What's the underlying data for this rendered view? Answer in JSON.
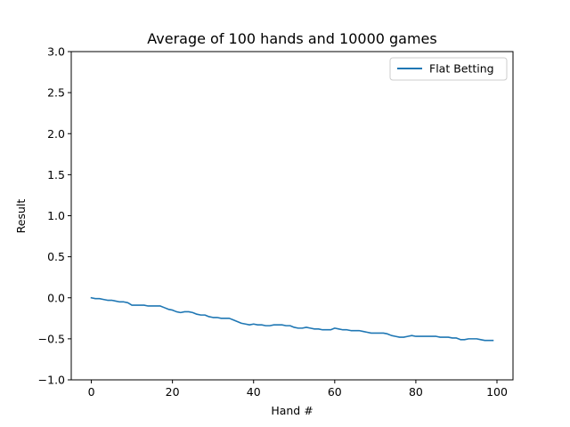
{
  "chart_data": {
    "type": "line",
    "title": "Average of 100 hands and 10000 games",
    "xlabel": "Hand #",
    "ylabel": "Result",
    "xlim": [
      -4.95,
      103.95
    ],
    "ylim": [
      -1.0,
      3.0
    ],
    "xticks": [
      0,
      20,
      40,
      60,
      80,
      100
    ],
    "yticks": [
      -1.0,
      -0.5,
      0.0,
      0.5,
      1.0,
      1.5,
      2.0,
      2.5,
      3.0
    ],
    "xtick_labels": [
      "0",
      "20",
      "40",
      "60",
      "80",
      "100"
    ],
    "ytick_labels": [
      "−1.0",
      "−0.5",
      "0.0",
      "0.5",
      "1.0",
      "1.5",
      "2.0",
      "2.5",
      "3.0"
    ],
    "grid": false,
    "legend_position": "top-right",
    "series": [
      {
        "name": "Flat Betting",
        "color": "#1f77b4",
        "x": [
          0,
          1,
          2,
          3,
          4,
          5,
          6,
          7,
          8,
          9,
          10,
          11,
          12,
          13,
          14,
          15,
          16,
          17,
          18,
          19,
          20,
          21,
          22,
          23,
          24,
          25,
          26,
          27,
          28,
          29,
          30,
          31,
          32,
          33,
          34,
          35,
          36,
          37,
          38,
          39,
          40,
          41,
          42,
          43,
          44,
          45,
          46,
          47,
          48,
          49,
          50,
          51,
          52,
          53,
          54,
          55,
          56,
          57,
          58,
          59,
          60,
          61,
          62,
          63,
          64,
          65,
          66,
          67,
          68,
          69,
          70,
          71,
          72,
          73,
          74,
          75,
          76,
          77,
          78,
          79,
          80,
          81,
          82,
          83,
          84,
          85,
          86,
          87,
          88,
          89,
          90,
          91,
          92,
          93,
          94,
          95,
          96,
          97,
          98,
          99
        ],
        "values": [
          0.0,
          -0.01,
          -0.01,
          -0.02,
          -0.03,
          -0.03,
          -0.04,
          -0.05,
          -0.05,
          -0.06,
          -0.09,
          -0.09,
          -0.09,
          -0.09,
          -0.1,
          -0.1,
          -0.1,
          -0.1,
          -0.12,
          -0.14,
          -0.15,
          -0.17,
          -0.18,
          -0.17,
          -0.17,
          -0.18,
          -0.2,
          -0.21,
          -0.21,
          -0.23,
          -0.24,
          -0.24,
          -0.25,
          -0.25,
          -0.25,
          -0.27,
          -0.29,
          -0.31,
          -0.32,
          -0.33,
          -0.32,
          -0.33,
          -0.33,
          -0.34,
          -0.34,
          -0.33,
          -0.33,
          -0.33,
          -0.34,
          -0.34,
          -0.36,
          -0.37,
          -0.37,
          -0.36,
          -0.37,
          -0.38,
          -0.38,
          -0.39,
          -0.39,
          -0.39,
          -0.37,
          -0.38,
          -0.39,
          -0.39,
          -0.4,
          -0.4,
          -0.4,
          -0.41,
          -0.42,
          -0.43,
          -0.43,
          -0.43,
          -0.43,
          -0.44,
          -0.46,
          -0.47,
          -0.48,
          -0.48,
          -0.47,
          -0.46,
          -0.47,
          -0.47,
          -0.47,
          -0.47,
          -0.47,
          -0.47,
          -0.48,
          -0.48,
          -0.48,
          -0.49,
          -0.49,
          -0.51,
          -0.51,
          -0.5,
          -0.5,
          -0.5,
          -0.51,
          -0.52,
          -0.52,
          -0.52
        ]
      }
    ]
  }
}
